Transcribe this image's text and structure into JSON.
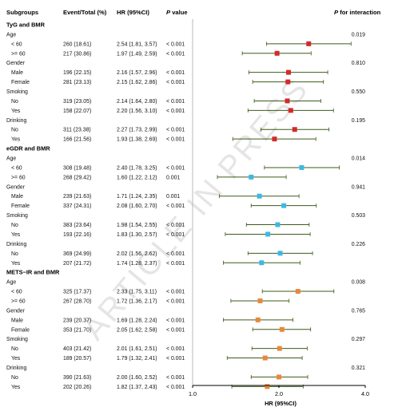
{
  "watermark": "ARTICLE IN PRESS",
  "colors": {
    "ci_line": "#3d5b1a",
    "tyg": "#d42a2a",
    "egdr": "#3db8e6",
    "mets": "#e8883a",
    "axis": "#000000",
    "ref_line": "#b8b8b8"
  },
  "headers": {
    "subgroups": "Subgroups",
    "event_total": "Event/Total (%)",
    "hr": "HR (95%CI)",
    "p_prefix": "P",
    "p_suffix": " value",
    "pint_prefix": "P",
    "pint_suffix": " for interaction"
  },
  "chart_data": {
    "type": "forest",
    "xlabel": "HR (95%CI)",
    "xticks": [
      "1.0",
      "2.0",
      "4.0"
    ],
    "xlim": [
      1.0,
      4.0
    ],
    "x_scale": "log",
    "reference_line": 1.0,
    "groups": [
      {
        "title": "TyG and BMR",
        "marker_color": "#d42a2a",
        "subgroups": [
          {
            "name": "Age",
            "p_interaction": "0.019",
            "levels": [
              {
                "label": "< 60",
                "events": "260 (18.61)",
                "hr_text": "2.54 (1.81, 3.57)",
                "p": "< 0.001",
                "hr": 2.54,
                "lo": 1.81,
                "hi": 3.57
              },
              {
                "label": ">= 60",
                "events": "217 (30.86)",
                "hr_text": "1.97 (1.49, 2.59)",
                "p": "< 0.001",
                "hr": 1.97,
                "lo": 1.49,
                "hi": 2.59
              }
            ]
          },
          {
            "name": "Gender",
            "p_interaction": "0.810",
            "levels": [
              {
                "label": "Male",
                "events": "196 (22.15)",
                "hr_text": "2.16 (1.57, 2.96)",
                "p": "< 0.001",
                "hr": 2.16,
                "lo": 1.57,
                "hi": 2.96
              },
              {
                "label": "Female",
                "events": "281 (23.13)",
                "hr_text": "2.15 (1.62, 2.86)",
                "p": "< 0.001",
                "hr": 2.15,
                "lo": 1.62,
                "hi": 2.86
              }
            ]
          },
          {
            "name": "Smoking",
            "p_interaction": "0.550",
            "levels": [
              {
                "label": "No",
                "events": "319 (23.05)",
                "hr_text": "2.14 (1.64, 2.80)",
                "p": "< 0.001",
                "hr": 2.14,
                "lo": 1.64,
                "hi": 2.8
              },
              {
                "label": "Yes",
                "events": "158 (22.07)",
                "hr_text": "2.20 (1.56, 3.10)",
                "p": "< 0.001",
                "hr": 2.2,
                "lo": 1.56,
                "hi": 3.1
              }
            ]
          },
          {
            "name": "Drinking",
            "p_interaction": "0.195",
            "levels": [
              {
                "label": "No",
                "events": "311 (23.38)",
                "hr_text": "2.27 (1.73, 2.99)",
                "p": "< 0.001",
                "hr": 2.27,
                "lo": 1.73,
                "hi": 2.99
              },
              {
                "label": "Yes",
                "events": "166 (21.56)",
                "hr_text": "1.93 (1.38, 2.69)",
                "p": "< 0.001",
                "hr": 1.93,
                "lo": 1.38,
                "hi": 2.69
              }
            ]
          }
        ]
      },
      {
        "title": "eGDR and BMR",
        "marker_color": "#3db8e6",
        "subgroups": [
          {
            "name": "Age",
            "p_interaction": "0.014",
            "levels": [
              {
                "label": "< 60",
                "events": "308 (19.48)",
                "hr_text": "2.40 (1.78, 3.25)",
                "p": "< 0.001",
                "hr": 2.4,
                "lo": 1.78,
                "hi": 3.25
              },
              {
                "label": ">= 60",
                "events": "268 (29.42)",
                "hr_text": "1.60 (1.22, 2.12)",
                "p": "0.001",
                "hr": 1.6,
                "lo": 1.22,
                "hi": 2.12
              }
            ]
          },
          {
            "name": "Gender",
            "p_interaction": "0.941",
            "levels": [
              {
                "label": "Male",
                "events": "239 (21.63)",
                "hr_text": "1.71 (1.24, 2.35)",
                "p": "0.001",
                "hr": 1.71,
                "lo": 1.24,
                "hi": 2.35
              },
              {
                "label": "Female",
                "events": "337 (24.31)",
                "hr_text": "2.08 (1.60, 2.70)",
                "p": "< 0.001",
                "hr": 2.08,
                "lo": 1.6,
                "hi": 2.7
              }
            ]
          },
          {
            "name": "Smoking",
            "p_interaction": "0.503",
            "levels": [
              {
                "label": "No",
                "events": "383 (23.64)",
                "hr_text": "1.98 (1.54, 2.55)",
                "p": "< 0.001",
                "hr": 1.98,
                "lo": 1.54,
                "hi": 2.55
              },
              {
                "label": "Yes",
                "events": "193 (22.16)",
                "hr_text": "1.83 (1.30, 2.57)",
                "p": "< 0.001",
                "hr": 1.83,
                "lo": 1.3,
                "hi": 2.57
              }
            ]
          },
          {
            "name": "Drinking",
            "p_interaction": "0.226",
            "levels": [
              {
                "label": "No",
                "events": "369 (24.99)",
                "hr_text": "2.02 (1.56, 2.62)",
                "p": "< 0.001",
                "hr": 2.02,
                "lo": 1.56,
                "hi": 2.62
              },
              {
                "label": "Yes",
                "events": "207 (21.72)",
                "hr_text": "1.74 (1.28, 2.37)",
                "p": "< 0.001",
                "hr": 1.74,
                "lo": 1.28,
                "hi": 2.37
              }
            ]
          }
        ]
      },
      {
        "title": "METS−IR and BMR",
        "marker_color": "#e8883a",
        "subgroups": [
          {
            "name": "Age",
            "p_interaction": "0.008",
            "levels": [
              {
                "label": "< 60",
                "events": "325 (17.37)",
                "hr_text": "2.33 (1.75, 3.11)",
                "p": "< 0.001",
                "hr": 2.33,
                "lo": 1.75,
                "hi": 3.11
              },
              {
                "label": ">= 60",
                "events": "267 (28.70)",
                "hr_text": "1.72 (1.36, 2.17)",
                "p": "< 0.001",
                "hr": 1.72,
                "lo": 1.36,
                "hi": 2.17
              }
            ]
          },
          {
            "name": "Gender",
            "p_interaction": "0.765",
            "levels": [
              {
                "label": "Male",
                "events": "239 (20.37)",
                "hr_text": "1.69 (1.28, 2.24)",
                "p": "< 0.001",
                "hr": 1.69,
                "lo": 1.28,
                "hi": 2.24
              },
              {
                "label": "Female",
                "events": "353 (21.70)",
                "hr_text": "2.05 (1.62, 2.58)",
                "p": "< 0.001",
                "hr": 2.05,
                "lo": 1.62,
                "hi": 2.58
              }
            ]
          },
          {
            "name": "Smoking",
            "p_interaction": "0.297",
            "levels": [
              {
                "label": "No",
                "events": "403 (21.42)",
                "hr_text": "2.01 (1.61, 2.51)",
                "p": "< 0.001",
                "hr": 2.01,
                "lo": 1.61,
                "hi": 2.51
              },
              {
                "label": "Yes",
                "events": "189 (20.57)",
                "hr_text": "1.79 (1.32, 2.41)",
                "p": "< 0.001",
                "hr": 1.79,
                "lo": 1.32,
                "hi": 2.41
              }
            ]
          },
          {
            "name": "Drinking",
            "p_interaction": "0.321",
            "levels": [
              {
                "label": "No",
                "events": "390 (21.63)",
                "hr_text": "2.00 (1.60, 2.52)",
                "p": "< 0.001",
                "hr": 2.0,
                "lo": 1.6,
                "hi": 2.52
              },
              {
                "label": "Yes",
                "events": "202 (20.26)",
                "hr_text": "1.82 (1.37, 2.43)",
                "p": "< 0.001",
                "hr": 1.82,
                "lo": 1.37,
                "hi": 2.43
              }
            ]
          }
        ]
      }
    ]
  }
}
